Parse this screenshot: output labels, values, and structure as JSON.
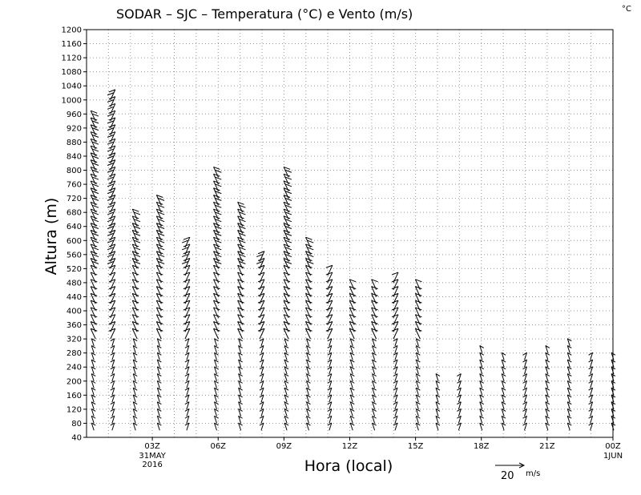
{
  "chart_data": {
    "type": "wind_barb_profile",
    "title": "SODAR – SJC – Temperatura (°C) e Vento (m/s)",
    "corner_unit": "°C",
    "xlabel": "Hora (local)",
    "ylabel": "Altura (m)",
    "ylim": [
      40,
      1200
    ],
    "yticks": [
      40,
      80,
      120,
      160,
      200,
      240,
      280,
      320,
      360,
      400,
      440,
      480,
      520,
      560,
      600,
      640,
      680,
      720,
      760,
      800,
      840,
      880,
      920,
      960,
      1000,
      1040,
      1080,
      1120,
      1160,
      1200
    ],
    "xlim": [
      0,
      24
    ],
    "xticks": [
      {
        "hour": 3,
        "label": "03Z"
      },
      {
        "hour": 6,
        "label": "06Z"
      },
      {
        "hour": 9,
        "label": "09Z"
      },
      {
        "hour": 12,
        "label": "12Z"
      },
      {
        "hour": 15,
        "label": "15Z"
      },
      {
        "hour": 18,
        "label": "18Z"
      },
      {
        "hour": 21,
        "label": "21Z"
      },
      {
        "hour": 24,
        "label": "00Z"
      }
    ],
    "date_labels": [
      {
        "hour": 3,
        "lines": [
          "31MAY",
          "2016"
        ]
      },
      {
        "hour": 24,
        "lines": [
          "1JUN"
        ]
      }
    ],
    "grid": true,
    "scale_arrow": {
      "value": 20,
      "unit": "m/s"
    },
    "profiles": [
      {
        "hour": 0.3,
        "top": 940
      },
      {
        "hour": 1.2,
        "top": 1000
      },
      {
        "hour": 2.2,
        "top": 660
      },
      {
        "hour": 3.3,
        "top": 710
      },
      {
        "hour": 4.6,
        "top": 590
      },
      {
        "hour": 5.9,
        "top": 790
      },
      {
        "hour": 7.0,
        "top": 680
      },
      {
        "hour": 8.0,
        "top": 540
      },
      {
        "hour": 9.1,
        "top": 790
      },
      {
        "hour": 10.1,
        "top": 580
      },
      {
        "hour": 11.1,
        "top": 510
      },
      {
        "hour": 12.1,
        "top": 460
      },
      {
        "hour": 13.1,
        "top": 460
      },
      {
        "hour": 14.1,
        "top": 490
      },
      {
        "hour": 15.1,
        "top": 460
      },
      {
        "hour": 16.0,
        "top": 210
      },
      {
        "hour": 17.0,
        "top": 200
      },
      {
        "hour": 18.0,
        "top": 280
      },
      {
        "hour": 19.0,
        "top": 270
      },
      {
        "hour": 20.0,
        "top": 270
      },
      {
        "hour": 21.0,
        "top": 280
      },
      {
        "hour": 22.0,
        "top": 310
      },
      {
        "hour": 23.0,
        "top": 270
      },
      {
        "hour": 24.0,
        "top": 270
      }
    ]
  }
}
